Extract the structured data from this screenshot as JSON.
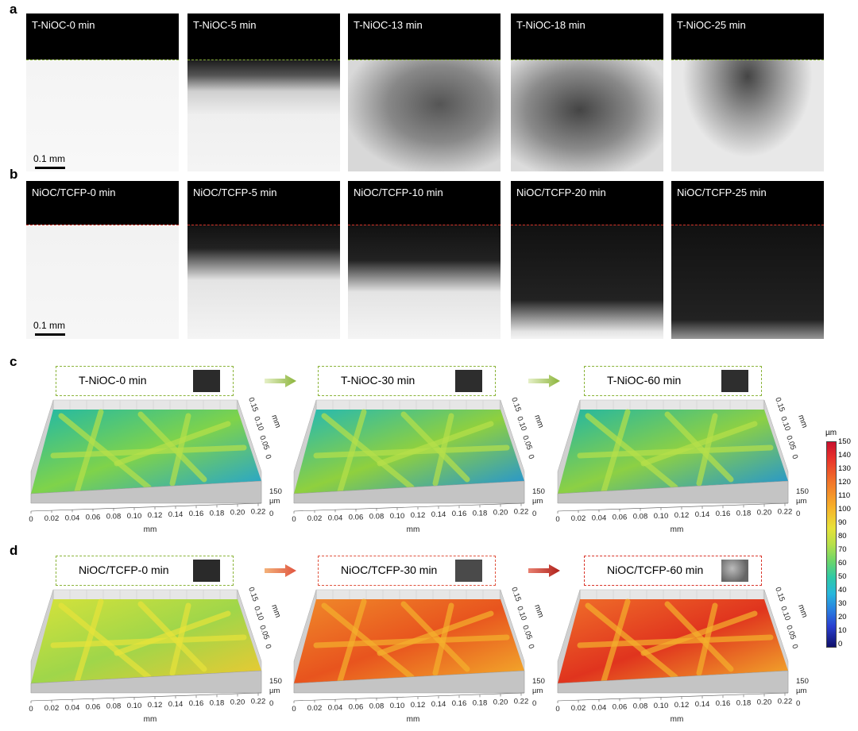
{
  "panels": {
    "a": {
      "letter": "a",
      "frames": [
        {
          "label": "T-NiOC-0 min"
        },
        {
          "label": "T-NiOC-5 min"
        },
        {
          "label": "T-NiOC-13 min"
        },
        {
          "label": "T-NiOC-18 min"
        },
        {
          "label": "T-NiOC-25 min"
        }
      ],
      "scale_label": "0.1 mm",
      "line_color": "#8bb43a"
    },
    "b": {
      "letter": "b",
      "frames": [
        {
          "label": "NiOC/TCFP-0 min"
        },
        {
          "label": "NiOC/TCFP-5 min"
        },
        {
          "label": "NiOC/TCFP-10 min"
        },
        {
          "label": "NiOC/TCFP-20 min"
        },
        {
          "label": "NiOC/TCFP-25 min"
        }
      ],
      "scale_label": "0.1 mm",
      "line_color": "#d9352a"
    },
    "c": {
      "letter": "c",
      "boxes": [
        "T-NiOC-0 min",
        "T-NiOC-30 min",
        "T-NiOC-60 min"
      ],
      "box_color": "#8bb43a",
      "swatches": [
        "#2b2b2b",
        "#2d2d2d",
        "#2e2e2e"
      ]
    },
    "d": {
      "letter": "d",
      "boxes": [
        "NiOC/TCFP-0 min",
        "NiOC/TCFP-30 min",
        "NiOC/TCFP-60 min"
      ],
      "box_colors": [
        "#8bb43a",
        "#e0543f",
        "#d9352a"
      ],
      "swatches": [
        "#2a2a2a",
        "#4a4a4a",
        "#8a8a8a"
      ]
    }
  },
  "axes3d": {
    "x_ticks": [
      "0",
      "0.02",
      "0.04",
      "0.06",
      "0.08",
      "0.10",
      "0.12",
      "0.14",
      "0.16",
      "0.18",
      "0.20",
      "0.22"
    ],
    "x_unit": "mm",
    "y_ticks": [
      "0.15",
      "0.10",
      "0.05",
      "0"
    ],
    "y_unit": "mm",
    "z_tick": "150",
    "z_unit": "µm"
  },
  "colorbar": {
    "unit": "µm",
    "ticks": [
      "150",
      "140",
      "130",
      "120",
      "110",
      "100",
      "90",
      "80",
      "70",
      "60",
      "50",
      "40",
      "30",
      "20",
      "10",
      "0"
    ],
    "min": 0,
    "max": 150
  }
}
